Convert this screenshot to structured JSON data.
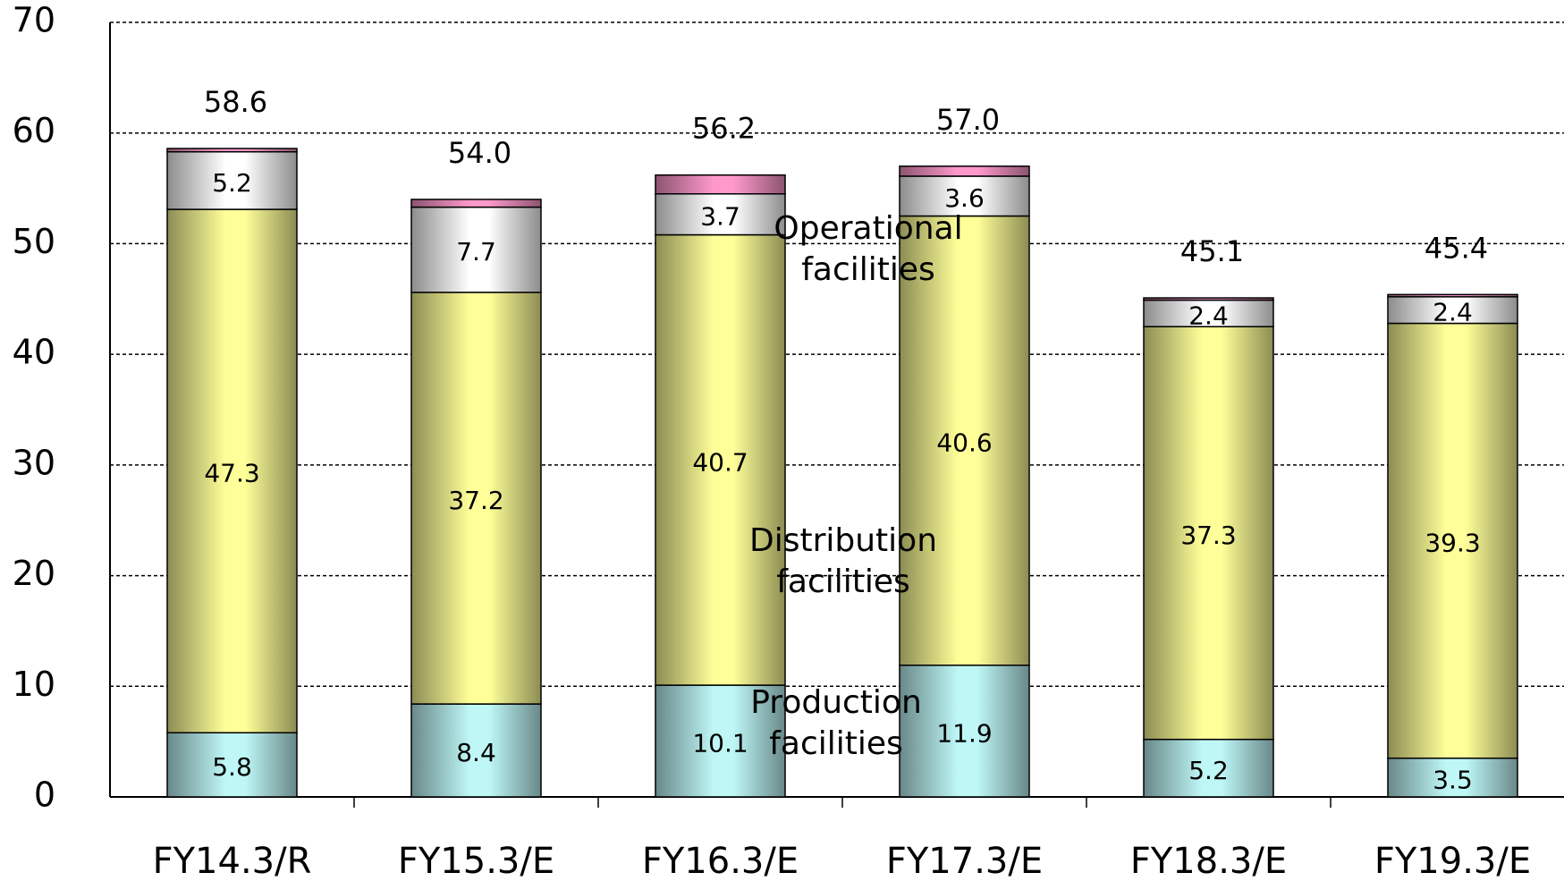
{
  "chart_data": {
    "type": "stacked-bar",
    "categories": [
      "FY14.3/R",
      "FY15.3/E",
      "FY16.3/E",
      "FY17.3/E",
      "FY18.3/E",
      "FY19.3/E"
    ],
    "series": [
      {
        "name": "Production facilities",
        "color": "#bff7f7",
        "values": [
          5.8,
          8.4,
          10.1,
          11.9,
          5.2,
          3.5
        ]
      },
      {
        "name": "Distribution facilities",
        "color": "#ffff99",
        "values": [
          47.3,
          37.2,
          40.7,
          40.6,
          37.3,
          39.3
        ]
      },
      {
        "name": "Operational facilities",
        "color": "#ffffff",
        "values": [
          5.2,
          7.7,
          3.7,
          3.6,
          2.4,
          2.4
        ]
      },
      {
        "color": "#ff99cc",
        "values": [
          0.3,
          0.7,
          1.7,
          0.9,
          0.2,
          0.2
        ]
      }
    ],
    "totals": [
      58.6,
      54.0,
      56.2,
      57.0,
      45.1,
      45.4
    ],
    "total_labels": [
      "58.6",
      "54.0",
      "56.2",
      "57.0",
      "45.1",
      "45.4"
    ],
    "ylim": [
      0,
      70
    ],
    "yticks": [
      0,
      10,
      20,
      30,
      40,
      50,
      60,
      70
    ],
    "grid": true
  }
}
